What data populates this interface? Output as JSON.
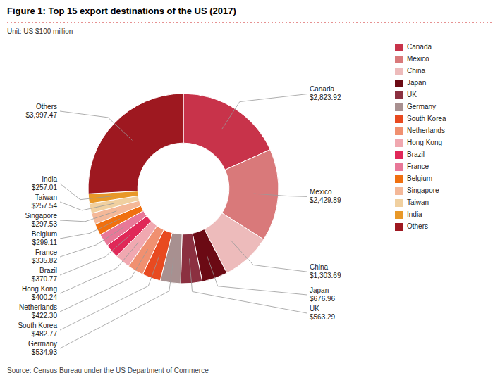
{
  "chart_data": {
    "type": "donut",
    "title": "Figure 1: Top 15 export destinations of the US (2017)",
    "subtitle": "Unit: US $100 million",
    "annotations": [
      "Source: Census Bureau under the US Department of Commerce"
    ],
    "categories": [
      "Canada",
      "Mexico",
      "China",
      "Japan",
      "UK",
      "Germany",
      "South Korea",
      "Netherlands",
      "Hong Kong",
      "Brazil",
      "France",
      "Belgium",
      "Singapore",
      "Taiwan",
      "India",
      "Others"
    ],
    "values": [
      2823.92,
      2429.89,
      1303.69,
      676.96,
      563.29,
      534.93,
      482.77,
      422.3,
      400.24,
      370.77,
      335.82,
      299.11,
      297.53,
      257.54,
      257.01,
      3997.47
    ],
    "value_labels": [
      "$2,823.92",
      "$2,429.89",
      "$1,303.69",
      "$676.96",
      "$563.29",
      "$534.93",
      "$482.77",
      "$422.30",
      "$400.24",
      "$370.77",
      "$335.82",
      "$299.11",
      "$297.53",
      "$257.54",
      "$257.01",
      "$3,997.47"
    ],
    "colors": [
      "#C8334A",
      "#D9797A",
      "#EDBBBB",
      "#6B0A14",
      "#8B3040",
      "#A89090",
      "#E84A20",
      "#F09070",
      "#F0A8B0",
      "#E02858",
      "#E87898",
      "#F07010",
      "#F4B898",
      "#F0D0A0",
      "#E89828",
      "#9E1820"
    ],
    "data_labels": true,
    "legend": "right"
  }
}
